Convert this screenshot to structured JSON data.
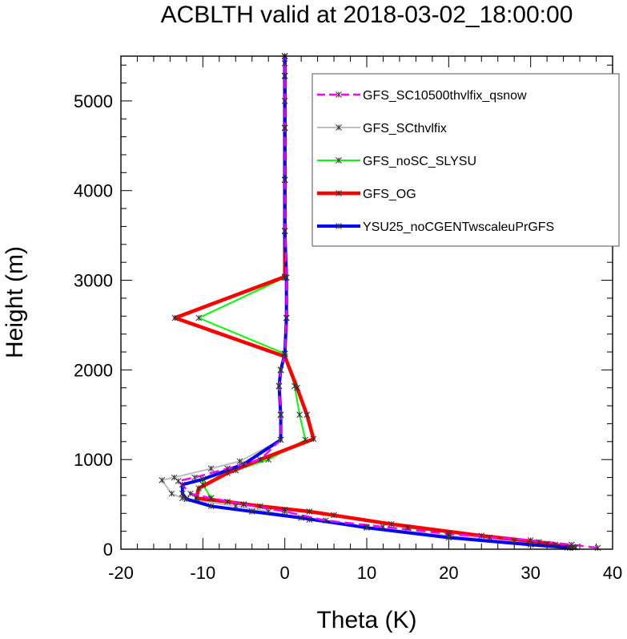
{
  "chart_data": {
    "type": "line",
    "title": "ACBLTH valid at 2018-03-02_18:00:00",
    "xlabel": "Theta (K)",
    "ylabel": "Height (m)",
    "xlim": [
      -20,
      40
    ],
    "ylim": [
      0,
      5500
    ],
    "xticks": [
      "-20",
      "-10",
      "0",
      "10",
      "20",
      "30",
      "40"
    ],
    "yticks": [
      "0",
      "1000",
      "2000",
      "3000",
      "4000",
      "5000"
    ],
    "grid": false,
    "legend_position": "top-right",
    "series": [
      {
        "name": "GFS_SC10500thvlfix_qsnow",
        "color": "#ff00ff",
        "dash": "dash",
        "x": [
          38.2,
          35.0,
          30.0,
          20.0,
          12.0,
          5.0,
          0.0,
          -5.0,
          -9.0,
          -11.5,
          -13.0,
          -11.0,
          -7.0,
          -3.0,
          -0.5,
          -0.5,
          -0.7,
          -0.5,
          0.0,
          0.2,
          0.2,
          0.0,
          0.0,
          0.0,
          0.0,
          0.0,
          0.0,
          0.0
        ],
        "y": [
          15,
          50,
          100,
          170,
          250,
          320,
          420,
          500,
          570,
          620,
          760,
          800,
          900,
          1000,
          1220,
          1500,
          1820,
          2000,
          2180,
          2580,
          3030,
          3550,
          4120,
          4700,
          5000,
          5280,
          5420,
          5500
        ]
      },
      {
        "name": "GFS_SCthvlfix",
        "color": "#bdbdbd",
        "dash": "solid",
        "x": [
          34.5,
          33.0,
          28.0,
          20.0,
          10.0,
          3.0,
          -2.0,
          -6.0,
          -12.5,
          -13.8,
          -15.0,
          -13.5,
          -9.0,
          -5.5,
          -0.5,
          -0.5,
          -0.7,
          -0.5,
          0.0,
          0.2,
          0.2,
          0.0,
          0.0,
          0.0,
          0.0,
          0.0
        ],
        "y": [
          20,
          50,
          90,
          150,
          250,
          330,
          420,
          480,
          570,
          620,
          770,
          800,
          900,
          980,
          1220,
          1500,
          1820,
          2000,
          2180,
          2580,
          3030,
          3550,
          4120,
          4700,
          5280,
          5500
        ]
      },
      {
        "name": "GFS_noSC_SLYSU",
        "color": "#00ff00",
        "dash": "solid",
        "x": [
          35.5,
          32.0,
          25.0,
          15.0,
          6.0,
          0.0,
          -5.0,
          -9.0,
          -10.0,
          -10.0,
          -6.0,
          -2.0,
          2.5,
          1.8,
          1.2,
          0.0,
          -10.5,
          0.0,
          0.0,
          0.0,
          0.0,
          0.0,
          0.0
        ],
        "y": [
          20,
          60,
          130,
          240,
          380,
          440,
          500,
          570,
          720,
          780,
          880,
          1000,
          1220,
          1500,
          1820,
          2180,
          2580,
          3030,
          3550,
          4120,
          4700,
          5280,
          5500
        ]
      },
      {
        "name": "GFS_OG",
        "color": "#ff0000",
        "dash": "solid",
        "x": [
          35.2,
          31.0,
          24.0,
          13.0,
          3.0,
          -3.0,
          -7.0,
          -10.8,
          -10.5,
          -7.0,
          -3.0,
          3.5,
          2.7,
          1.5,
          0.0,
          -13.4,
          0.0,
          0.0,
          0.0,
          0.0,
          0.0,
          0.0
        ],
        "y": [
          20,
          80,
          150,
          280,
          420,
          480,
          530,
          570,
          680,
          850,
          1000,
          1230,
          1500,
          1800,
          2150,
          2580,
          3040,
          3550,
          4120,
          4700,
          5280,
          5500
        ]
      },
      {
        "name": "YSU25_noCGENTwscaleuPrGFS",
        "color": "#0000ff",
        "dash": "solid",
        "x": [
          34.8,
          30.0,
          20.0,
          10.0,
          2.0,
          -4.0,
          -9.0,
          -12.0,
          -12.5,
          -12.5,
          -10.0,
          -5.0,
          -0.5,
          -0.5,
          -0.7,
          -0.5,
          0.0,
          0.2,
          0.2,
          0.0,
          0.0,
          0.0,
          0.0
        ],
        "y": [
          15,
          50,
          130,
          240,
          350,
          420,
          480,
          560,
          620,
          720,
          780,
          950,
          1220,
          1500,
          1820,
          2000,
          2180,
          2580,
          3030,
          3550,
          4120,
          4700,
          5500
        ]
      }
    ]
  }
}
